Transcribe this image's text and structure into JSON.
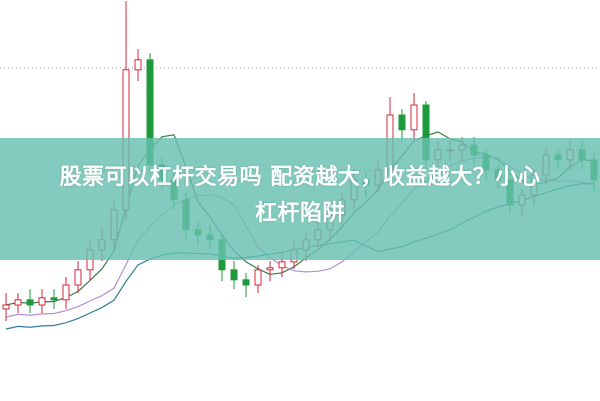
{
  "title": {
    "line1": "股票可以杠杆交易吗 配资越大，收益越大？小心",
    "line2": "杠杆陷阱"
  },
  "colors": {
    "up": "#d9263a",
    "down": "#1e9a3c",
    "banner": "#68c0b0",
    "ma_short": "#3a7a4a",
    "ma_mid": "#b58fd0",
    "ma_long": "#2f7f9a"
  },
  "chart_data": {
    "type": "candlestick",
    "grid": "dotted horizontal",
    "open": [
      23,
      24,
      25.3,
      24,
      25.8,
      25.3,
      29,
      32.8,
      37.8,
      40.3,
      47.8,
      82.8,
      85.3,
      59,
      55.3,
      50.3,
      42.8,
      41.5,
      40.3,
      32.8,
      30.3,
      29,
      32.8,
      33.3,
      34.8,
      37.8,
      40.3,
      42.8,
      46.5,
      50.3,
      55.3,
      54,
      57.8,
      71.5,
      67.8,
      74,
      60.3,
      62.8,
      62.8,
      64,
      61.5,
      57.8,
      55.3,
      49,
      51.5,
      56.5,
      61.5,
      60.3,
      62.8,
      60.3
    ],
    "close": [
      24,
      25.3,
      24,
      25.8,
      25.3,
      29,
      32.8,
      37.8,
      40.3,
      47.8,
      82.8,
      85.3,
      59,
      55.3,
      50.3,
      42.8,
      41.5,
      40.3,
      32.8,
      30.3,
      29,
      32.8,
      33.3,
      34.8,
      37.8,
      40.3,
      42.8,
      46.5,
      50.3,
      55.3,
      54,
      57.8,
      71.5,
      67.8,
      74,
      60.3,
      62.8,
      62.8,
      64,
      61.5,
      57.8,
      55.3,
      49,
      51.5,
      56.5,
      61.5,
      60.3,
      62.8,
      60.3,
      55.3
    ],
    "high": [
      27,
      27,
      28,
      28,
      28,
      31,
      35,
      40,
      43,
      50,
      100,
      88,
      87,
      61,
      57,
      52,
      45,
      44,
      42,
      35,
      32,
      34,
      35,
      37,
      40,
      42,
      45,
      49,
      52,
      58,
      57,
      60,
      76,
      73,
      77,
      75,
      65,
      65,
      66,
      66,
      63,
      59,
      57,
      53,
      58,
      63,
      63,
      65,
      65,
      62
    ],
    "low": [
      20,
      22,
      22,
      22,
      23,
      23,
      27,
      30,
      35,
      38,
      45,
      80,
      57,
      53,
      48,
      40,
      39,
      38,
      30,
      28,
      26,
      27,
      30,
      31,
      33,
      35,
      38,
      40,
      44,
      48,
      51,
      52,
      55,
      65,
      65,
      58,
      58,
      60,
      60,
      59,
      55,
      53,
      47,
      46,
      49,
      54,
      58,
      58,
      58,
      52
    ]
  }
}
